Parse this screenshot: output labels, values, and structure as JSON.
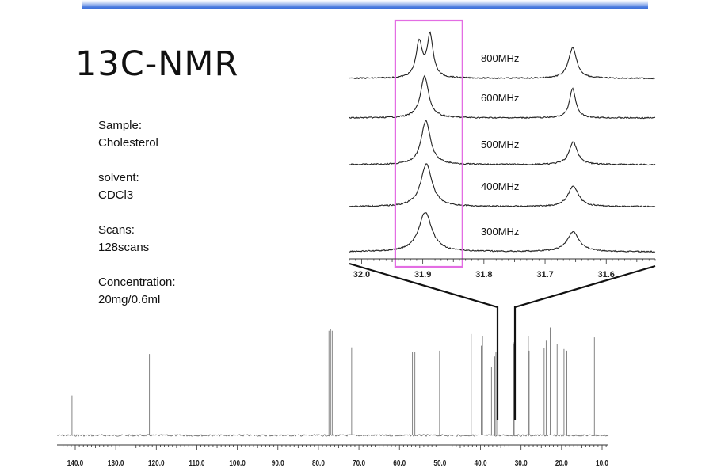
{
  "title": "13C-NMR",
  "info": [
    {
      "label": "Sample:",
      "value": "Cholesterol"
    },
    {
      "label": "solvent:",
      "value": "CDCl3"
    },
    {
      "label": "Scans:",
      "value": "128scans"
    },
    {
      "label": "Concentration:",
      "value": "20mg/0.6ml"
    }
  ],
  "colors": {
    "highlight": "#e36de3",
    "trace": "#222222",
    "header_bar": "#3b6fd8"
  },
  "chart_data": [
    {
      "type": "line",
      "name": "full-spectrum",
      "x_unit": "ppm",
      "xlim": [
        143,
        6
      ],
      "x_reversed": true,
      "ticks": [
        "140.0",
        "130.0",
        "120.0",
        "110.0",
        "100.0",
        "90.0",
        "80.0",
        "70.0",
        "60.0",
        "50.0",
        "40.0",
        "30.0",
        "20.0",
        "10.0"
      ],
      "peaks": [
        {
          "ppm": 140.8,
          "height": 0.48
        },
        {
          "ppm": 121.7,
          "height": 0.98
        },
        {
          "ppm": 77.4,
          "height": 1.26
        },
        {
          "ppm": 77.0,
          "height": 1.28
        },
        {
          "ppm": 76.6,
          "height": 1.26
        },
        {
          "ppm": 71.8,
          "height": 1.06
        },
        {
          "ppm": 56.8,
          "height": 1.0
        },
        {
          "ppm": 56.2,
          "height": 1.0
        },
        {
          "ppm": 50.1,
          "height": 1.02
        },
        {
          "ppm": 42.3,
          "height": 1.22
        },
        {
          "ppm": 39.8,
          "height": 1.08
        },
        {
          "ppm": 39.5,
          "height": 1.2
        },
        {
          "ppm": 37.3,
          "height": 0.82
        },
        {
          "ppm": 36.5,
          "height": 0.95
        },
        {
          "ppm": 36.2,
          "height": 1.0
        },
        {
          "ppm": 35.8,
          "height": 0.95
        },
        {
          "ppm": 31.9,
          "height": 1.12
        },
        {
          "ppm": 31.7,
          "height": 1.1
        },
        {
          "ppm": 28.2,
          "height": 1.2
        },
        {
          "ppm": 28.0,
          "height": 1.02
        },
        {
          "ppm": 24.3,
          "height": 1.05
        },
        {
          "ppm": 23.8,
          "height": 1.14
        },
        {
          "ppm": 22.8,
          "height": 1.3
        },
        {
          "ppm": 22.6,
          "height": 1.26
        },
        {
          "ppm": 21.1,
          "height": 1.1
        },
        {
          "ppm": 19.4,
          "height": 1.04
        },
        {
          "ppm": 18.7,
          "height": 1.02
        },
        {
          "ppm": 11.9,
          "height": 1.18
        }
      ]
    },
    {
      "type": "line",
      "name": "zoomed-comparison",
      "x_unit": "ppm",
      "xlim": [
        32.02,
        31.52
      ],
      "x_reversed": true,
      "ticks": [
        "32.0",
        "31.9",
        "31.8",
        "31.7",
        "31.6"
      ],
      "highlight_range": [
        31.945,
        31.835
      ],
      "series": [
        {
          "name": "800MHz",
          "peaks": [
            {
              "ppm": 31.906,
              "height": 0.72,
              "width": 0.006
            },
            {
              "ppm": 31.888,
              "height": 0.86,
              "width": 0.006
            },
            {
              "ppm": 31.655,
              "height": 0.62,
              "width": 0.008
            }
          ]
        },
        {
          "name": "600MHz",
          "peaks": [
            {
              "ppm": 31.897,
              "height": 0.85,
              "width": 0.008
            },
            {
              "ppm": 31.655,
              "height": 0.6,
              "width": 0.006
            }
          ]
        },
        {
          "name": "500MHz",
          "peaks": [
            {
              "ppm": 31.895,
              "height": 0.9,
              "width": 0.009
            },
            {
              "ppm": 31.654,
              "height": 0.46,
              "width": 0.008
            }
          ]
        },
        {
          "name": "400MHz",
          "peaks": [
            {
              "ppm": 31.894,
              "height": 0.87,
              "width": 0.011
            },
            {
              "ppm": 31.654,
              "height": 0.42,
              "width": 0.01
            }
          ]
        },
        {
          "name": "300MHz",
          "peaks": [
            {
              "ppm": 31.896,
              "height": 0.8,
              "width": 0.013
            },
            {
              "ppm": 31.654,
              "height": 0.4,
              "width": 0.012
            }
          ]
        }
      ]
    }
  ]
}
